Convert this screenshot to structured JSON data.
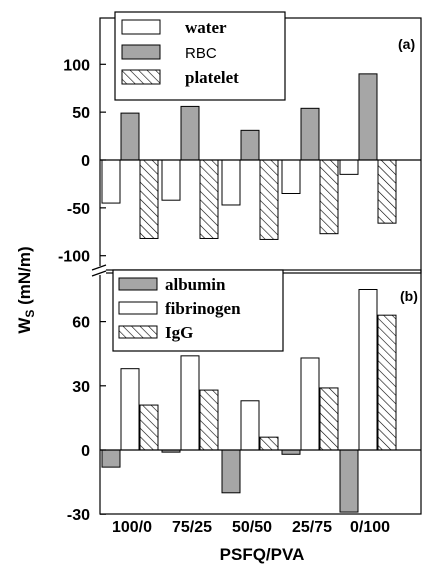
{
  "chart_data": {
    "type": "bar",
    "shared_y_axis_label": "W",
    "shared_y_axis_label_subscript": "S",
    "shared_y_axis_label_unit": " (mN/m)",
    "panels": [
      {
        "panel_label": "(a)",
        "categories": [
          "100/0",
          "75/25",
          "50/50",
          "25/75",
          "0/100"
        ],
        "ylim": [
          -100,
          150
        ],
        "yticks": [
          "100",
          "50",
          "0",
          "-50",
          "-100"
        ],
        "series": [
          {
            "name": "water",
            "fill": "#ffffff",
            "values": [
              -45,
              -42,
              -47,
              -35,
              -15
            ]
          },
          {
            "name": "RBC",
            "fill": "#a6a6a6",
            "values": [
              49,
              56,
              31,
              54,
              90
            ]
          },
          {
            "name": "platelet",
            "fill": "hatch",
            "values": [
              -82,
              -82,
              -83,
              -77,
              -66
            ]
          }
        ]
      },
      {
        "panel_label": "(b)",
        "categories": [
          "100/0",
          "75/25",
          "50/50",
          "25/75",
          "0/100"
        ],
        "ylim": [
          -30,
          88
        ],
        "yticks": [
          "60",
          "30",
          "0",
          "-30"
        ],
        "series": [
          {
            "name": "albumin",
            "fill": "#a6a6a6",
            "values": [
              -8,
              -1,
              -20,
              -2,
              -29
            ]
          },
          {
            "name": "fibrinogen",
            "fill": "#ffffff",
            "values": [
              38,
              44,
              23,
              43,
              75
            ]
          },
          {
            "name": "IgG",
            "fill": "hatch",
            "values": [
              21,
              28,
              6,
              29,
              63
            ]
          }
        ]
      }
    ],
    "x_categories": [
      "100/0",
      "75/25",
      "50/50",
      "25/75",
      "0/100"
    ],
    "xlabel": "PSFQ/PVA",
    "legend_placement": "top-left",
    "grid": false
  }
}
